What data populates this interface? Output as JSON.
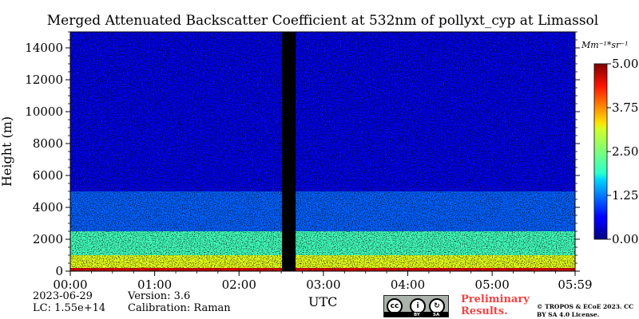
{
  "chart_data": {
    "type": "heatmap",
    "title": "Merged Attenuated Backscatter Coefficient at 532nm of pollyxt_cyp at Limassol",
    "xlabel": "UTC",
    "ylabel": "Height (m)",
    "x_ticks": [
      "00:00",
      "01:00",
      "02:00",
      "03:00",
      "04:00",
      "05:00",
      "05:59"
    ],
    "x_range_hours": [
      0,
      5.983
    ],
    "y_ticks": [
      0,
      2000,
      4000,
      6000,
      8000,
      10000,
      12000,
      14000
    ],
    "ylim": [
      0,
      15000
    ],
    "colorbar": {
      "unit_label": "Mm⁻¹*sr⁻¹",
      "ticks": [
        "0.00",
        "1.25",
        "2.50",
        "3.75",
        "5.00"
      ],
      "range": [
        0,
        5
      ],
      "colormap": "jet"
    },
    "data_gap_hours": [
      2.51,
      2.67
    ],
    "layers": [
      {
        "name_visible": false,
        "bottom_m": 0,
        "top_m": 200,
        "value": 4.5
      },
      {
        "name_visible": false,
        "bottom_m": 200,
        "top_m": 1000,
        "value": 3.0
      },
      {
        "name_visible": false,
        "bottom_m": 1000,
        "top_m": 2500,
        "value": 2.2
      },
      {
        "name_visible": false,
        "bottom_m": 2500,
        "top_m": 5000,
        "value": 1.1
      },
      {
        "name_visible": false,
        "bottom_m": 5000,
        "top_m": 15000,
        "value": 0.5
      }
    ]
  },
  "info": {
    "date": "2023-06-29",
    "lc": "LC: 1.55e+14",
    "version": "Version: 3.6",
    "calibration": "Calibration: Raman"
  },
  "footer": {
    "preliminary": "Preliminary Results.",
    "copyright": "© TROPOS & ECoE 2023. CC BY SA 4.0 License.",
    "license_badge": [
      "BY",
      "SA"
    ]
  }
}
